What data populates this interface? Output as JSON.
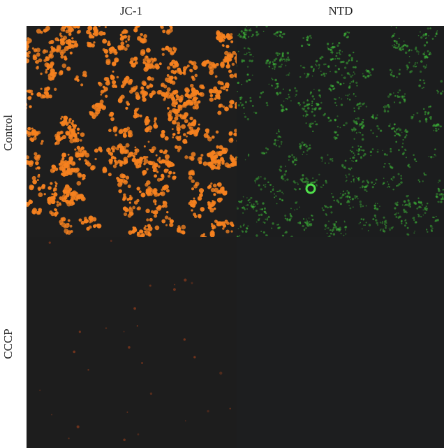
{
  "figure": {
    "columns": [
      "JC-1",
      "NTD"
    ],
    "rows": [
      "Control",
      "CCCP"
    ]
  },
  "colors": {
    "jc1_aggregate": "#f5811f",
    "ntd_green": "#3fbf3a",
    "background": "#1e1e1e",
    "dim_red": "#8a3a1c"
  }
}
